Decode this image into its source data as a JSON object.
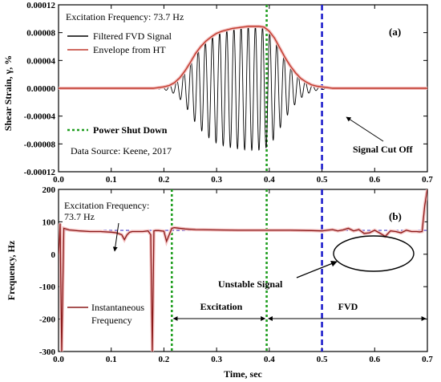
{
  "chart_data": [
    {
      "type": "line",
      "panel_label": "(a)",
      "xlabel": "",
      "ylabel": "Shear Strain, γ, %",
      "xlim": [
        0,
        0.7
      ],
      "ylim": [
        -0.00012,
        0.00012
      ],
      "x_ticks": [
        "0.0",
        "0.1",
        "0.2",
        "0.3",
        "0.4",
        "0.5",
        "0.6",
        "0.7"
      ],
      "y_ticks": [
        "0.00012",
        "0.00008",
        "0.00004",
        "0.00000",
        "-0.00004",
        "-0.00008",
        "-0.00012"
      ],
      "y_tick_values": [
        0.00012,
        8e-05,
        4e-05,
        0,
        -4e-05,
        -8e-05,
        -0.00012
      ],
      "annotations": {
        "excitation_frequency": "Excitation Frequency: 73.7 Hz",
        "data_source": "Data Source: Keene, 2017",
        "signal_cut_off": "Signal Cut Off"
      },
      "legend_entries": {
        "filtered": "Filtered FVD Signal",
        "envelope": "Envelope from HT",
        "power": "Power Shut Down"
      },
      "series": [
        {
          "name": "Filtered FVD Signal",
          "color": "#000000",
          "x": [
            0.0,
            0.01,
            0.02,
            0.03,
            0.04,
            0.05,
            0.06,
            0.07,
            0.08,
            0.09,
            0.1,
            0.11,
            0.12,
            0.13,
            0.14,
            0.15,
            0.16,
            0.17,
            0.18,
            0.19,
            0.2,
            0.21,
            0.22,
            0.23,
            0.24,
            0.25,
            0.26,
            0.27,
            0.28,
            0.29,
            0.3,
            0.31,
            0.32,
            0.33,
            0.34,
            0.35,
            0.36,
            0.37,
            0.38,
            0.39,
            0.4,
            0.41,
            0.42,
            0.43,
            0.44,
            0.45,
            0.46,
            0.47,
            0.48,
            0.49,
            0.5,
            0.51,
            0.52,
            0.53,
            0.54,
            0.55,
            0.56,
            0.57,
            0.58,
            0.59,
            0.6,
            0.61,
            0.62,
            0.63,
            0.64,
            0.65,
            0.66,
            0.67,
            0.68,
            0.69,
            0.7
          ],
          "envelope_amplitude": [
            0,
            0,
            0,
            0,
            0,
            0,
            0,
            0,
            0,
            0,
            0,
            0,
            0,
            0,
            0,
            0,
            0,
            0,
            0,
            1e-06,
            2e-06,
            4e-06,
            8e-06,
            1.5e-05,
            2.5e-05,
            3.7e-05,
            5e-05,
            6e-05,
            6.8e-05,
            7.4e-05,
            7.9e-05,
            8.2e-05,
            8.4e-05,
            8.6e-05,
            8.7e-05,
            8.8e-05,
            8.9e-05,
            8.9e-05,
            8.9e-05,
            8.8e-05,
            8.2e-05,
            7.2e-05,
            5.8e-05,
            4.4e-05,
            3.2e-05,
            2.2e-05,
            1.4e-05,
            9e-06,
            5e-06,
            3e-06,
            2e-06,
            1e-06,
            0,
            0,
            0,
            0,
            0,
            0,
            0,
            0,
            0,
            0,
            0,
            0,
            0,
            0,
            0,
            0,
            0,
            0,
            0
          ],
          "frequency_hz": 73.7
        },
        {
          "name": "Envelope from HT",
          "color": "#c0392b",
          "x": [
            0.0,
            0.01,
            0.02,
            0.03,
            0.04,
            0.05,
            0.06,
            0.07,
            0.08,
            0.09,
            0.1,
            0.11,
            0.12,
            0.13,
            0.14,
            0.15,
            0.16,
            0.17,
            0.18,
            0.19,
            0.2,
            0.21,
            0.22,
            0.23,
            0.24,
            0.25,
            0.26,
            0.27,
            0.28,
            0.29,
            0.3,
            0.31,
            0.32,
            0.33,
            0.34,
            0.35,
            0.36,
            0.37,
            0.38,
            0.39,
            0.4,
            0.41,
            0.42,
            0.43,
            0.44,
            0.45,
            0.46,
            0.47,
            0.48,
            0.49,
            0.5,
            0.51,
            0.52,
            0.53,
            0.54,
            0.55,
            0.56,
            0.57,
            0.58,
            0.59,
            0.6,
            0.61,
            0.62,
            0.63,
            0.64,
            0.65,
            0.66,
            0.67,
            0.68,
            0.69,
            0.7
          ],
          "y": [
            0,
            0,
            0,
            0,
            0,
            0,
            0,
            0,
            0,
            0,
            0,
            0,
            0,
            0,
            0,
            0,
            0,
            0,
            0,
            1e-06,
            2e-06,
            4e-06,
            8e-06,
            1.5e-05,
            2.5e-05,
            3.7e-05,
            5e-05,
            6e-05,
            6.8e-05,
            7.4e-05,
            7.9e-05,
            8.2e-05,
            8.4e-05,
            8.6e-05,
            8.7e-05,
            8.8e-05,
            8.9e-05,
            8.9e-05,
            8.9e-05,
            8.8e-05,
            8.2e-05,
            7.2e-05,
            5.8e-05,
            4.4e-05,
            3.2e-05,
            2.2e-05,
            1.4e-05,
            9e-06,
            5e-06,
            3e-06,
            2e-06,
            1e-06,
            0,
            0,
            0,
            0,
            0,
            0,
            0,
            0,
            0,
            0,
            0,
            0,
            0,
            0,
            0,
            0,
            0,
            0,
            0
          ]
        }
      ],
      "vertical_lines": [
        {
          "name": "Power Shut Down",
          "x": 0.395,
          "color": "#1f9e1f",
          "style": "dotted"
        },
        {
          "name": "Signal Cut Off",
          "x": 0.5,
          "color": "#1f1fcc",
          "style": "dashed"
        }
      ]
    },
    {
      "type": "line",
      "panel_label": "(b)",
      "xlabel": "Time, sec",
      "ylabel": "Frequency, Hz",
      "xlim": [
        0,
        0.7
      ],
      "ylim": [
        -300,
        200
      ],
      "x_ticks": [
        "0.0",
        "0.1",
        "0.2",
        "0.3",
        "0.4",
        "0.5",
        "0.6",
        "0.7"
      ],
      "y_ticks": [
        "200",
        "100",
        "0",
        "-100",
        "-200",
        "-300"
      ],
      "y_tick_values": [
        200,
        100,
        0,
        -100,
        -200,
        -300
      ],
      "annotations": {
        "excitation_frequency_line1": "Excitation Frequency:",
        "excitation_frequency_line2": "73.7 Hz",
        "unstable_signal": "Unstable Signal",
        "excitation": "Excitation",
        "fvd": "FVD"
      },
      "legend_entries": {
        "instantaneous_line1": "Instantaneous",
        "instantaneous_line2": "Frequency"
      },
      "series": [
        {
          "name": "Instantaneous Frequency",
          "color": "#8b1a1a",
          "x": [
            0.0,
            0.003,
            0.006,
            0.01,
            0.02,
            0.04,
            0.06,
            0.08,
            0.1,
            0.11,
            0.12,
            0.125,
            0.13,
            0.135,
            0.14,
            0.16,
            0.17,
            0.175,
            0.178,
            0.181,
            0.184,
            0.19,
            0.2,
            0.205,
            0.21,
            0.215,
            0.22,
            0.24,
            0.26,
            0.3,
            0.34,
            0.38,
            0.4,
            0.44,
            0.48,
            0.5,
            0.51,
            0.52,
            0.53,
            0.54,
            0.55,
            0.56,
            0.57,
            0.58,
            0.59,
            0.6,
            0.61,
            0.62,
            0.63,
            0.64,
            0.65,
            0.66,
            0.67,
            0.68,
            0.685,
            0.69,
            0.695,
            0.7
          ],
          "y": [
            0,
            95,
            -300,
            80,
            75,
            72,
            70,
            70,
            68,
            66,
            60,
            45,
            60,
            68,
            70,
            70,
            72,
            60,
            -300,
            72,
            73,
            73,
            71,
            40,
            60,
            80,
            82,
            78,
            76,
            75,
            74,
            74,
            74,
            74,
            73,
            72,
            74,
            76,
            72,
            75,
            80,
            72,
            76,
            64,
            66,
            74,
            65,
            55,
            72,
            70,
            66,
            74,
            70,
            70,
            69,
            70,
            150,
            200
          ]
        }
      ],
      "reference_line": {
        "name": "Excitation Frequency",
        "y": 73.7,
        "color": "#4a3cc7"
      },
      "vertical_lines": [
        {
          "x": 0.215,
          "color": "#1f9e1f",
          "style": "dotted"
        },
        {
          "x": 0.395,
          "color": "#1f9e1f",
          "style": "dotted"
        },
        {
          "x": 0.5,
          "color": "#1f1fcc",
          "style": "dashed"
        }
      ],
      "spans": {
        "excitation": [
          0.215,
          0.395
        ],
        "fvd": [
          0.395,
          0.7
        ]
      }
    }
  ]
}
